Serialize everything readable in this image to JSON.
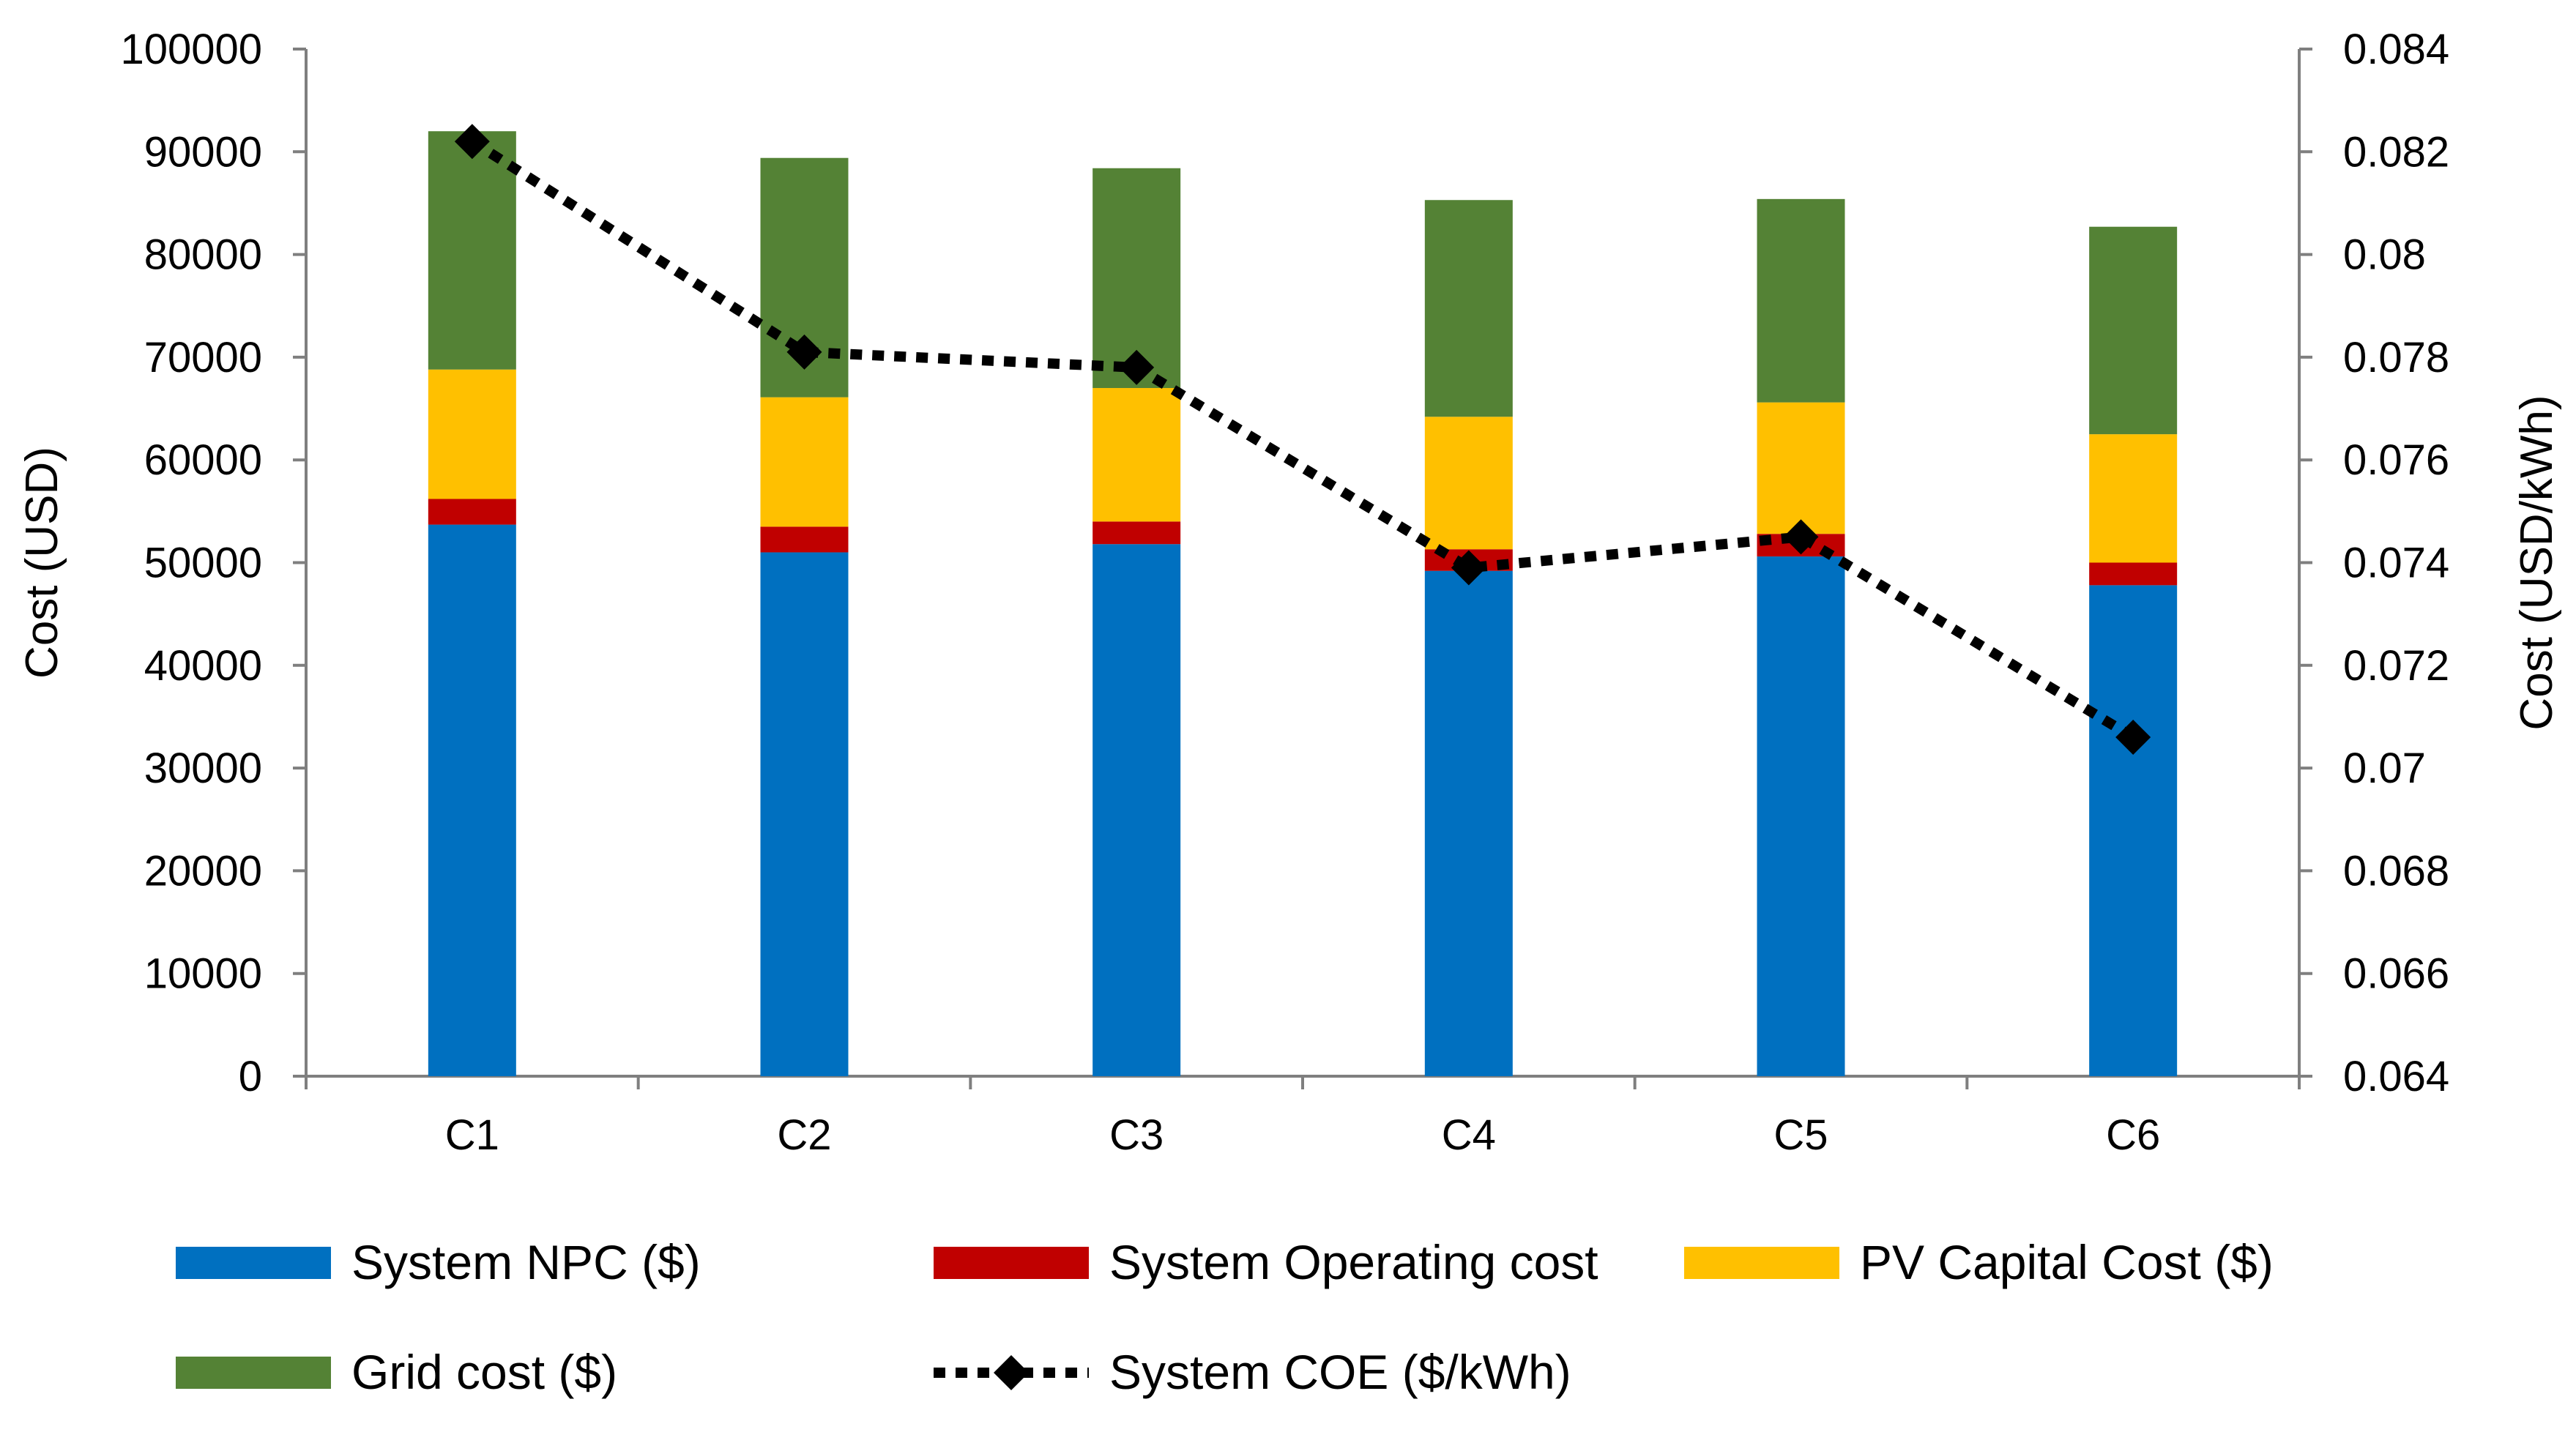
{
  "chart_data": {
    "type": "bar",
    "stacked": true,
    "categories": [
      "C1",
      "C2",
      "C3",
      "C4",
      "C5",
      "C6"
    ],
    "series": [
      {
        "name": "System NPC ($)",
        "axis": "left",
        "color": "#0070C0",
        "values": [
          53700,
          51000,
          51800,
          49200,
          50600,
          47800
        ]
      },
      {
        "name": "System Operating cost",
        "axis": "left",
        "color": "#C00000",
        "values": [
          2500,
          2500,
          2200,
          2100,
          2200,
          2200
        ]
      },
      {
        "name": "PV Capital Cost ($)",
        "axis": "left",
        "color": "#FFC000",
        "values": [
          12600,
          12600,
          13000,
          12900,
          12800,
          12500
        ]
      },
      {
        "name": "Grid cost ($)",
        "axis": "left",
        "color": "#548235",
        "values": [
          23200,
          23300,
          21400,
          21100,
          19800,
          20200
        ]
      },
      {
        "name": "System COE ($/kWh)",
        "axis": "right",
        "type": "line",
        "color": "#000000",
        "line_style": "dotted",
        "marker": "diamond",
        "values": [
          0.0822,
          0.0781,
          0.0778,
          0.0739,
          0.0745,
          0.0706
        ]
      }
    ],
    "y_left": {
      "label": "Cost (USD)",
      "min": 0,
      "max": 100000,
      "step": 10000,
      "ticks": [
        "0",
        "10000",
        "20000",
        "30000",
        "40000",
        "50000",
        "60000",
        "70000",
        "80000",
        "90000",
        "100000"
      ]
    },
    "y_right": {
      "label": "Cost (USD/kWh)",
      "min": 0.064,
      "max": 0.084,
      "step": 0.002,
      "ticks": [
        "0.064",
        "0.066",
        "0.068",
        "0.07",
        "0.072",
        "0.074",
        "0.076",
        "0.078",
        "0.08",
        "0.082",
        "0.084"
      ]
    },
    "grid": false,
    "legend_position": "bottom"
  }
}
